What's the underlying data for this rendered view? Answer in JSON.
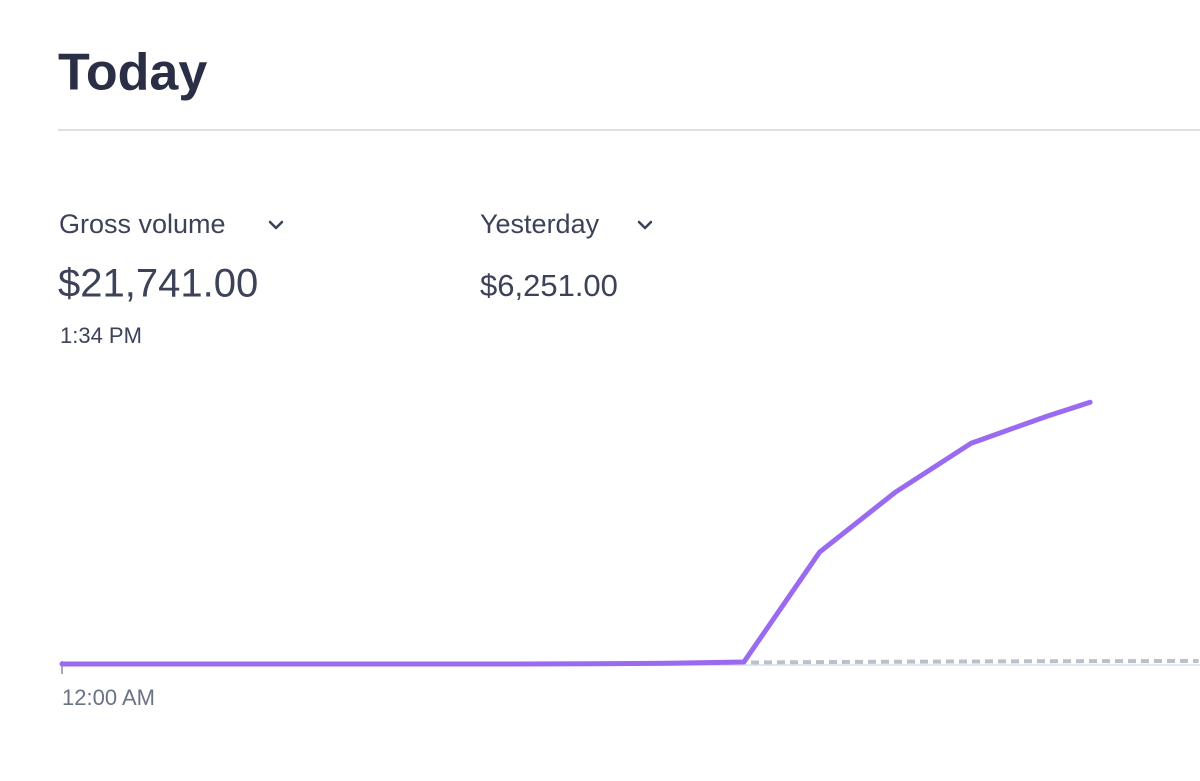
{
  "header": {
    "title": "Today"
  },
  "metrics": [
    {
      "label": "Gross volume",
      "value": "$21,741.00",
      "time": "1:34 PM"
    },
    {
      "label": "Yesterday",
      "value": "$6,251.00"
    }
  ],
  "chart_data": {
    "type": "line",
    "x": [
      0,
      1,
      2,
      3,
      4,
      5,
      6,
      7,
      8,
      9,
      10,
      11,
      12,
      13,
      13.57,
      14,
      15
    ],
    "xlim": [
      0,
      15.02
    ],
    "xticks": [
      {
        "value": 0,
        "label": "12:00 AM"
      }
    ],
    "ylim": [
      0,
      25000
    ],
    "series": [
      {
        "name": "Gross volume",
        "color": "#9a6af0",
        "values": [
          0,
          0,
          0,
          0,
          0,
          0,
          0,
          20,
          60,
          166,
          9294,
          14272,
          18338,
          20579,
          21741,
          null,
          null
        ]
      },
      {
        "name": "Yesterday",
        "color": "#b9c1cc",
        "dashed": true,
        "values": [
          0,
          0,
          0,
          0,
          0,
          0,
          0,
          20,
          60,
          120,
          160,
          190,
          210,
          230,
          235,
          240,
          250
        ]
      }
    ]
  }
}
